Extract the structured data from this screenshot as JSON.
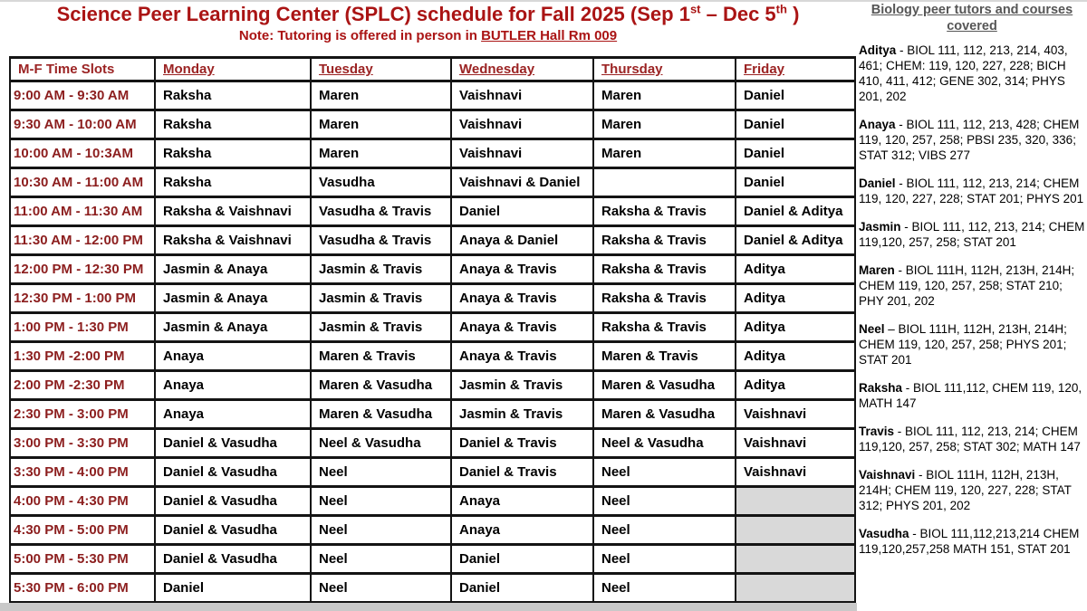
{
  "title": {
    "part1": "Science Peer Learning Center (SPLC) schedule for Fall 2025 (Sep 1",
    "sup1": "st",
    "part2": " – Dec 5",
    "sup2": "th",
    "part3": " )"
  },
  "note": {
    "prefix": "Note: Tutoring is offered in person in ",
    "underlined": "BUTLER Hall Rm 009"
  },
  "table": {
    "headers": [
      "M-F Time Slots",
      "Monday",
      "Tuesday",
      "Wednesday",
      "Thursday",
      "Friday"
    ],
    "rows": [
      {
        "time": "9:00 AM - 9:30 AM",
        "cells": [
          "Raksha",
          "Maren",
          "Vaishnavi",
          "Maren",
          "Daniel"
        ]
      },
      {
        "time": "9:30 AM - 10:00 AM",
        "cells": [
          "Raksha",
          "Maren",
          "Vaishnavi",
          "Maren",
          "Daniel"
        ]
      },
      {
        "time": "10:00 AM - 10:3AM",
        "cells": [
          "Raksha",
          "Maren",
          "Vaishnavi",
          "Maren",
          "Daniel"
        ]
      },
      {
        "time": "10:30 AM - 11:00 AM",
        "cells": [
          "Raksha",
          "Vasudha",
          "Vaishnavi & Daniel",
          "",
          "Daniel"
        ]
      },
      {
        "time": "11:00 AM - 11:30 AM",
        "cells": [
          "Raksha & Vaishnavi",
          "Vasudha & Travis",
          "Daniel",
          "Raksha & Travis",
          "Daniel & Aditya"
        ]
      },
      {
        "time": "11:30 AM - 12:00 PM",
        "cells": [
          "Raksha & Vaishnavi",
          "Vasudha & Travis",
          "Anaya & Daniel",
          "Raksha & Travis",
          "Daniel & Aditya"
        ]
      },
      {
        "time": "12:00 PM - 12:30 PM",
        "cells": [
          "Jasmin & Anaya",
          "Jasmin & Travis",
          "Anaya & Travis",
          "Raksha & Travis",
          "Aditya"
        ]
      },
      {
        "time": "12:30 PM - 1:00 PM",
        "cells": [
          "Jasmin & Anaya",
          "Jasmin & Travis",
          "Anaya & Travis",
          "Raksha & Travis",
          "Aditya"
        ]
      },
      {
        "time": "1:00 PM - 1:30 PM",
        "cells": [
          "Jasmin & Anaya",
          "Jasmin & Travis",
          "Anaya & Travis",
          "Raksha & Travis",
          "Aditya"
        ]
      },
      {
        "time": "1:30 PM -2:00 PM",
        "cells": [
          "Anaya",
          "Maren & Travis",
          "Anaya & Travis",
          "Maren & Travis",
          "Aditya"
        ]
      },
      {
        "time": "2:00 PM -2:30 PM",
        "cells": [
          "Anaya",
          "Maren & Vasudha",
          "Jasmin & Travis",
          "Maren & Vasudha",
          "Aditya"
        ]
      },
      {
        "time": "2:30 PM - 3:00 PM",
        "cells": [
          "Anaya",
          "Maren & Vasudha",
          "Jasmin & Travis",
          "Maren & Vasudha",
          "Vaishnavi"
        ]
      },
      {
        "time": "3:00 PM - 3:30 PM",
        "cells": [
          "Daniel & Vasudha",
          "Neel & Vasudha",
          "Daniel & Travis",
          "Neel & Vasudha",
          "Vaishnavi"
        ]
      },
      {
        "time": "3:30 PM - 4:00 PM",
        "cells": [
          "Daniel & Vasudha",
          "Neel",
          "Daniel & Travis",
          "Neel",
          "Vaishnavi"
        ]
      },
      {
        "time": "4:00 PM - 4:30 PM",
        "cells": [
          "Daniel & Vasudha",
          "Neel",
          "Anaya",
          "Neel",
          null
        ]
      },
      {
        "time": "4:30 PM - 5:00 PM",
        "cells": [
          "Daniel & Vasudha",
          "Neel",
          "Anaya",
          "Neel",
          null
        ]
      },
      {
        "time": "5:00 PM - 5:30 PM",
        "cells": [
          "Daniel & Vasudha",
          "Neel",
          "Daniel",
          "Neel",
          null
        ]
      },
      {
        "time": "5:30 PM - 6:00 PM",
        "cells": [
          "Daniel",
          "Neel",
          "Daniel",
          "Neel",
          null
        ]
      }
    ]
  },
  "sidebar": {
    "heading": "Biology peer tutors and courses covered",
    "tutors": [
      {
        "name": "Aditya",
        "sep": " - ",
        "courses": "BIOL 111, 112, 213, 214, 403, 461; CHEM: 119, 120, 227, 228; BICH 410, 411, 412; GENE 302, 314; PHYS 201, 202"
      },
      {
        "name": "Anaya",
        "sep": " - ",
        "courses": "BIOL 111, 112, 213, 428; CHEM 119, 120, 257, 258; PBSI 235, 320, 336; STAT 312; VIBS 277"
      },
      {
        "name": "Daniel",
        "sep": " - ",
        "courses": "BIOL 111, 112, 213, 214; CHEM 119, 120, 227, 228; STAT 201; PHYS 201"
      },
      {
        "name": "Jasmin",
        "sep": " - ",
        "courses": "BIOL 111, 112, 213, 214; CHEM 119,120, 257, 258; STAT 201"
      },
      {
        "name": "Maren",
        "sep": " - ",
        "courses": "BIOL 111H, 112H,  213H, 214H; CHEM 119, 120, 257, 258; STAT 210; PHY 201, 202"
      },
      {
        "name": "Neel",
        "sep": " – ",
        "courses": "BIOL 111H, 112H, 213H, 214H; CHEM 119, 120, 257, 258; PHYS 201; STAT 201"
      },
      {
        "name": "Raksha",
        "sep": " - ",
        "courses": "BIOL 111,112, CHEM 119, 120, MATH 147"
      },
      {
        "name": "Travis",
        "sep": " - ",
        "courses": "BIOL 111, 112, 213, 214; CHEM 119,120, 257, 258; STAT 302; MATH 147"
      },
      {
        "name": "Vaishnavi",
        "sep": " - ",
        "courses": "BIOL 111H, 112H, 213H, 214H; CHEM 119, 120, 227, 228; STAT 312; PHYS 201, 202"
      },
      {
        "name": "Vasudha",
        "sep": " - ",
        "courses": "BIOL 111,112,213,214 CHEM 119,120,257,258 MATH 151, STAT 201"
      }
    ]
  },
  "colors": {
    "title_red": "#aa1414",
    "time_maroon": "#8c1e1e",
    "day_header_maroon": "#9b2323",
    "sidebar_heading_gray": "#565656",
    "shaded_cell_gray": "#d9d9d9",
    "table_border": "#141414"
  }
}
